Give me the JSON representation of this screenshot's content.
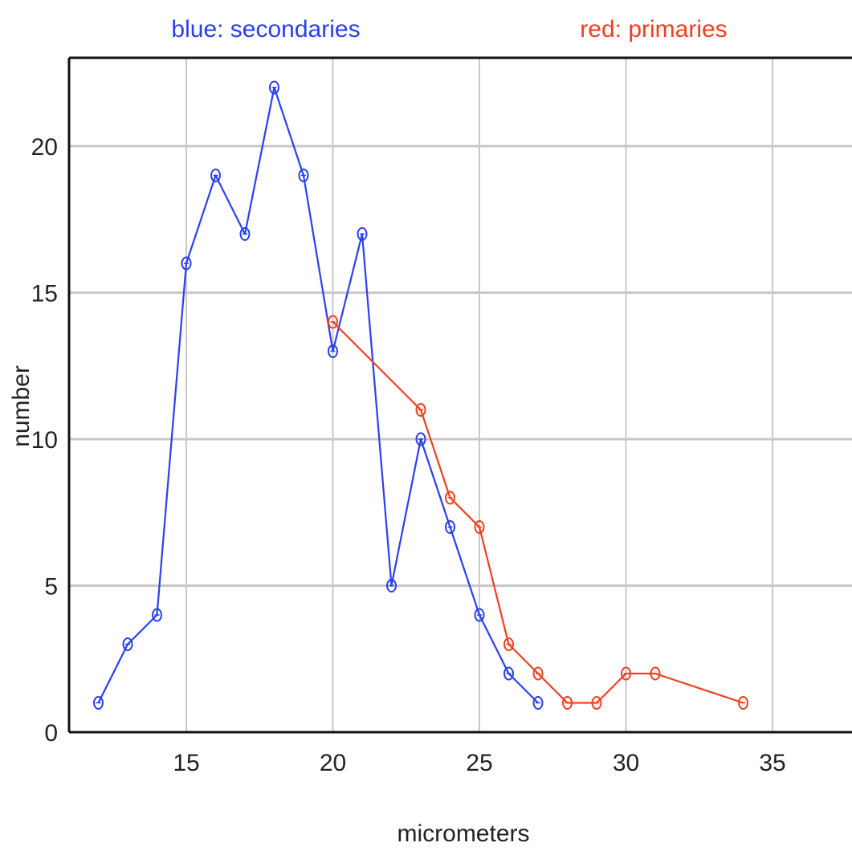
{
  "chart_data": {
    "type": "line",
    "legend": {
      "placement": "top",
      "entries": [
        {
          "label": "blue: secondaries",
          "color": "#2a3ff0"
        },
        {
          "label": "red: primaries",
          "color": "#f0401e"
        }
      ]
    },
    "xlabel": "micrometers",
    "ylabel": "number",
    "xlim": [
      10,
      38
    ],
    "ylim": [
      0,
      22.5
    ],
    "xticks": [
      "15",
      "20",
      "25",
      "30",
      "35"
    ],
    "yticks": [
      "0",
      "5",
      "10",
      "15",
      "20"
    ],
    "grid": true,
    "series": [
      {
        "color": "#2a3ff0",
        "points": [
          [
            12,
            1
          ],
          [
            13,
            3
          ],
          [
            14,
            4
          ],
          [
            15,
            16
          ],
          [
            16,
            19
          ],
          [
            17,
            17
          ],
          [
            18,
            22
          ],
          [
            19,
            19
          ],
          [
            20,
            13
          ],
          [
            21,
            17
          ],
          [
            22,
            5
          ],
          [
            23,
            10
          ],
          [
            24,
            7
          ],
          [
            25,
            4
          ],
          [
            26,
            2
          ],
          [
            27,
            1
          ]
        ]
      },
      {
        "color": "#f0401e",
        "points": [
          [
            20,
            14
          ],
          [
            23,
            11
          ],
          [
            24,
            8
          ],
          [
            25,
            7
          ],
          [
            26,
            3
          ],
          [
            27,
            2
          ],
          [
            28,
            1
          ],
          [
            29,
            1
          ],
          [
            30,
            2
          ],
          [
            31,
            2
          ],
          [
            34,
            1
          ]
        ]
      }
    ]
  }
}
